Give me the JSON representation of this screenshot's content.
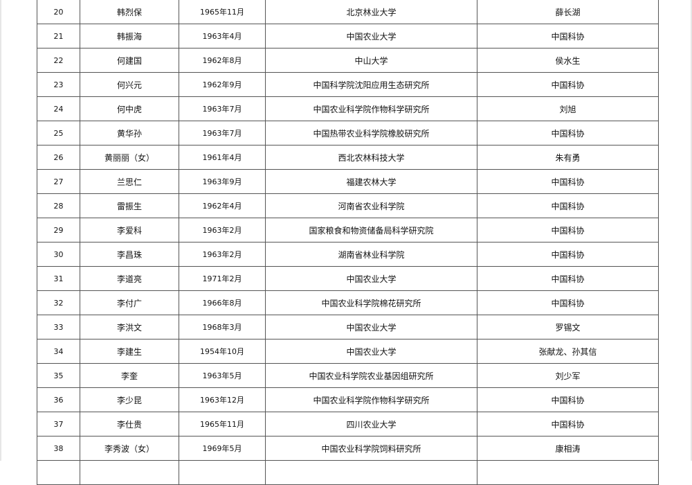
{
  "rows": [
    {
      "no": "20",
      "name": "韩烈保",
      "birth": "1965年11月",
      "unit": "北京林业大学",
      "nominator": "薛长湖"
    },
    {
      "no": "21",
      "name": "韩振海",
      "birth": "1963年4月",
      "unit": "中国农业大学",
      "nominator": "中国科协"
    },
    {
      "no": "22",
      "name": "何建国",
      "birth": "1962年8月",
      "unit": "中山大学",
      "nominator": "侯水生"
    },
    {
      "no": "23",
      "name": "何兴元",
      "birth": "1962年9月",
      "unit": "中国科学院沈阳应用生态研究所",
      "nominator": "中国科协"
    },
    {
      "no": "24",
      "name": "何中虎",
      "birth": "1963年7月",
      "unit": "中国农业科学院作物科学研究所",
      "nominator": "刘旭"
    },
    {
      "no": "25",
      "name": "黄华孙",
      "birth": "1963年7月",
      "unit": "中国热带农业科学院橡胶研究所",
      "nominator": "中国科协"
    },
    {
      "no": "26",
      "name": "黄丽丽（女）",
      "birth": "1961年4月",
      "unit": "西北农林科技大学",
      "nominator": "朱有勇"
    },
    {
      "no": "27",
      "name": "兰思仁",
      "birth": "1963年9月",
      "unit": "福建农林大学",
      "nominator": "中国科协"
    },
    {
      "no": "28",
      "name": "雷振生",
      "birth": "1962年4月",
      "unit": "河南省农业科学院",
      "nominator": "中国科协"
    },
    {
      "no": "29",
      "name": "李爱科",
      "birth": "1963年2月",
      "unit": "国家粮食和物资储备局科学研究院",
      "nominator": "中国科协"
    },
    {
      "no": "30",
      "name": "李昌珠",
      "birth": "1963年2月",
      "unit": "湖南省林业科学院",
      "nominator": "中国科协"
    },
    {
      "no": "31",
      "name": "李道亮",
      "birth": "1971年2月",
      "unit": "中国农业大学",
      "nominator": "中国科协"
    },
    {
      "no": "32",
      "name": "李付广",
      "birth": "1966年8月",
      "unit": "中国农业科学院棉花研究所",
      "nominator": "中国科协"
    },
    {
      "no": "33",
      "name": "李洪文",
      "birth": "1968年3月",
      "unit": "中国农业大学",
      "nominator": "罗锡文"
    },
    {
      "no": "34",
      "name": "李建生",
      "birth": "1954年10月",
      "unit": "中国农业大学",
      "nominator": "张献龙、孙其信"
    },
    {
      "no": "35",
      "name": "李奎",
      "birth": "1963年5月",
      "unit": "中国农业科学院农业基因组研究所",
      "nominator": "刘少军"
    },
    {
      "no": "36",
      "name": "李少昆",
      "birth": "1963年12月",
      "unit": "中国农业科学院作物科学研究所",
      "nominator": "中国科协"
    },
    {
      "no": "37",
      "name": "李仕贵",
      "birth": "1965年11月",
      "unit": "四川农业大学",
      "nominator": "中国科协"
    },
    {
      "no": "38",
      "name": "李秀波（女）",
      "birth": "1969年5月",
      "unit": "中国农业科学院饲料研究所",
      "nominator": "康相涛"
    },
    {
      "no": "",
      "name": "",
      "birth": "",
      "unit": "",
      "nominator": ""
    }
  ]
}
